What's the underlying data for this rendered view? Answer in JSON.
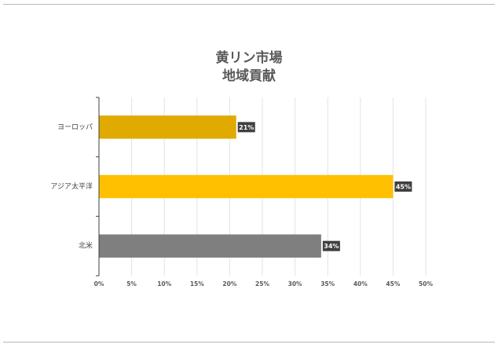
{
  "chart_data": {
    "type": "bar",
    "orientation": "horizontal",
    "title_lines": [
      "黄リン市場",
      "地域貢献"
    ],
    "categories": [
      "ヨーロッパ",
      "アジア太平洋",
      "北米"
    ],
    "values": [
      21,
      45,
      34
    ],
    "data_labels": [
      "21%",
      "45%",
      "34%"
    ],
    "bar_colors": [
      "#E0AA00",
      "#FFC000",
      "#7F7F7F"
    ],
    "x_ticks": [
      "0%",
      "5%",
      "10%",
      "15%",
      "20%",
      "25%",
      "30%",
      "35%",
      "40%",
      "45%",
      "50%"
    ],
    "xlim": [
      0,
      50
    ],
    "grid": true,
    "legend": "none"
  }
}
